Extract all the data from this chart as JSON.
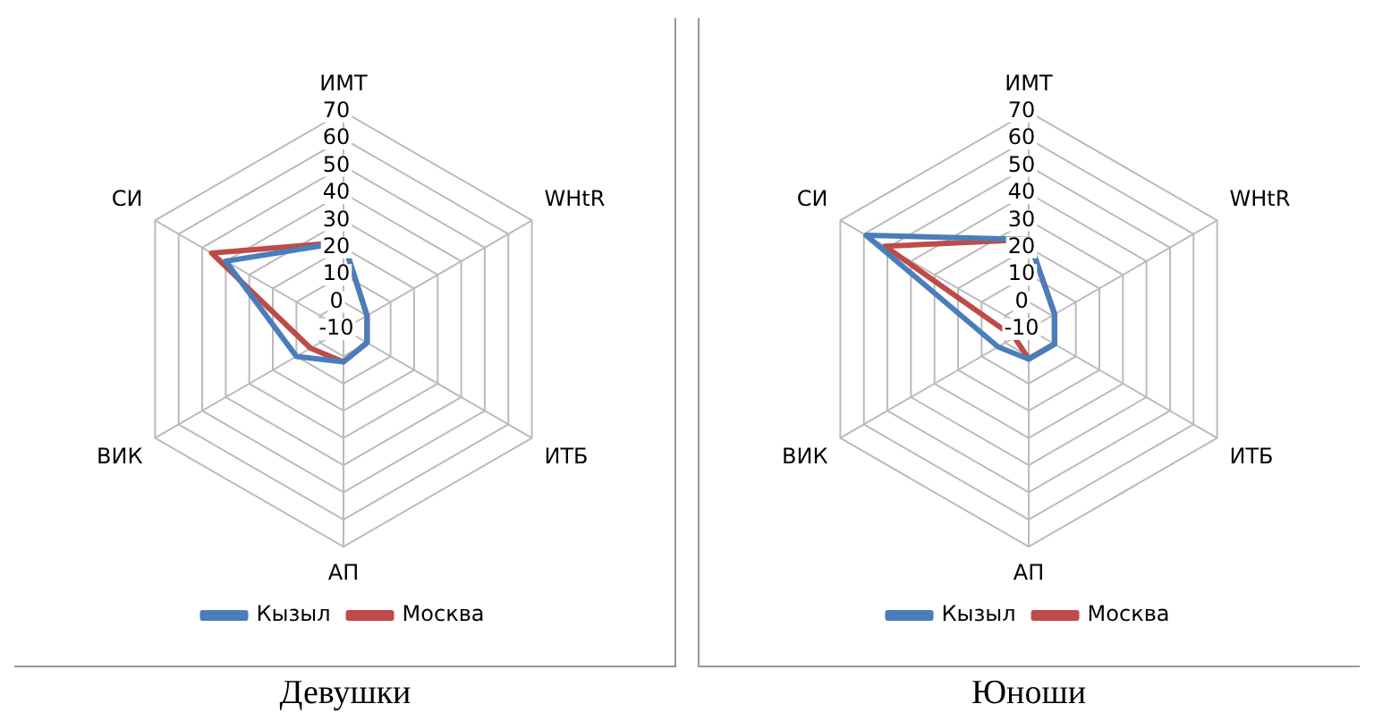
{
  "chart_data": [
    {
      "type": "radar",
      "title": "Девушки",
      "categories": [
        "ИМТ",
        "WHtR",
        "ИТБ",
        "АП",
        "ВИК",
        "СИ"
      ],
      "series": [
        {
          "name": "Кызыл",
          "color": "#4a7ebb",
          "values": [
            22,
            0,
            0,
            2,
            10,
            40
          ]
        },
        {
          "name": "Москва",
          "color": "#be4b48",
          "values": [
            22,
            0,
            0,
            2,
            4,
            46
          ]
        }
      ],
      "ylim": [
        -10,
        70
      ],
      "yticks": [
        -10,
        0,
        10,
        20,
        30,
        40,
        50,
        60,
        70
      ],
      "grid": true,
      "legend": "bottom",
      "marker": "none"
    },
    {
      "type": "radar",
      "title": "Юноши",
      "categories": [
        "ИМТ",
        "WHtR",
        "ИТБ",
        "АП",
        "ВИК",
        "СИ"
      ],
      "series": [
        {
          "name": "Кызыл",
          "color": "#4a7ebb",
          "values": [
            23,
            1,
            1,
            1,
            3,
            59
          ]
        },
        {
          "name": "Москва",
          "color": "#be4b48",
          "values": [
            23,
            1,
            1,
            1,
            -4,
            51
          ]
        }
      ],
      "ylim": [
        -10,
        70
      ],
      "yticks": [
        -10,
        0,
        10,
        20,
        30,
        40,
        50,
        60,
        70
      ],
      "grid": true,
      "legend": "bottom",
      "marker": "none"
    }
  ]
}
